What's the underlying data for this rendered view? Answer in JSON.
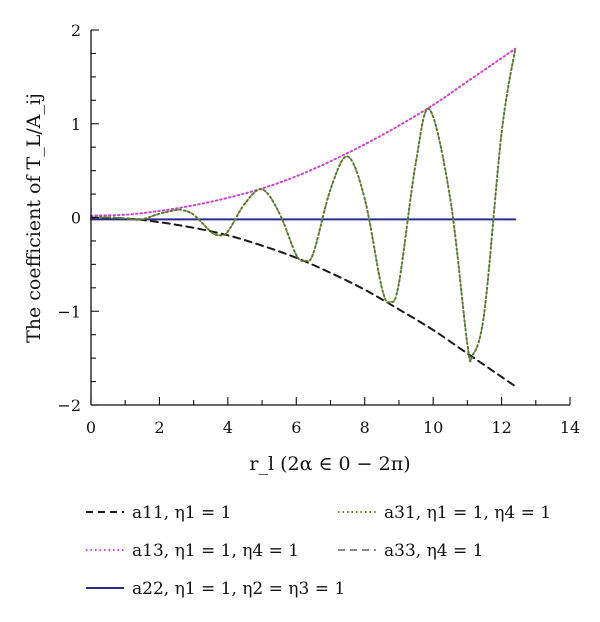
{
  "chart_data": {
    "type": "line",
    "title": "",
    "xlabel": "r_l (2α ∈ 0 − 2π)",
    "ylabel": "The coefficient of T_L/A_ij",
    "xlim": [
      0,
      14
    ],
    "ylim": [
      -2,
      2
    ],
    "x_ticks": [
      0,
      2,
      4,
      6,
      8,
      10,
      12,
      14
    ],
    "y_ticks": [
      -2,
      -1,
      0,
      1,
      2
    ],
    "x_tick_labels": [
      "0",
      "2",
      "4",
      "6",
      "8",
      "10",
      "12",
      "14"
    ],
    "y_tick_labels": [
      "−2",
      "−1",
      "0",
      "1",
      "2"
    ],
    "grid": false,
    "legend_position": "below",
    "series": [
      {
        "name": "a11, η1 = 1",
        "color": "#1a1a1a",
        "style": "dashed",
        "x": [
          0,
          1,
          2,
          3,
          4,
          5,
          6,
          7,
          8,
          9,
          10,
          11,
          12,
          12.4
        ],
        "y": [
          0,
          -0.01,
          -0.05,
          -0.11,
          -0.19,
          -0.3,
          -0.43,
          -0.59,
          -0.77,
          -0.98,
          -1.2,
          -1.45,
          -1.7,
          -1.8
        ]
      },
      {
        "name": "a13, η1 = 1, η4 = 1",
        "color": "#cc44cc",
        "style": "dotted",
        "x": [
          0,
          1,
          2,
          3,
          4,
          5,
          6,
          7,
          8,
          9,
          10,
          11,
          12,
          12.4
        ],
        "y": [
          0.02,
          0.03,
          0.07,
          0.13,
          0.21,
          0.31,
          0.44,
          0.6,
          0.78,
          0.98,
          1.2,
          1.45,
          1.7,
          1.8
        ]
      },
      {
        "name": "a22, η1 = 1, η2 = η3 = 1",
        "color": "#2b2b8f",
        "style": "solid",
        "x": [
          0,
          12.4
        ],
        "y": [
          -0.02,
          -0.02
        ]
      },
      {
        "name": "a31, η1 = 1, η4 = 1",
        "color": "#5a7a2a",
        "style": "dotted",
        "x": [
          0,
          0.5,
          1,
          1.25,
          1.5,
          2,
          2.5,
          2.65,
          3,
          3.5,
          3.75,
          4,
          4.5,
          5,
          5.5,
          6,
          6.25,
          6.5,
          7,
          7.5,
          8,
          8.5,
          8.75,
          9,
          9.5,
          9.9,
          10.5,
          11,
          11.15,
          11.5,
          12,
          12.4
        ],
        "y": [
          0,
          0.002,
          -0.01,
          -0.02,
          -0.02,
          0.04,
          0.08,
          0.08,
          0.03,
          -0.15,
          -0.19,
          -0.15,
          0.15,
          0.3,
          0.05,
          -0.4,
          -0.46,
          -0.38,
          0.3,
          0.65,
          0.2,
          -0.75,
          -0.9,
          -0.7,
          0.6,
          1.15,
          0.2,
          -1.35,
          -1.47,
          -1.0,
          0.9,
          1.8
        ]
      },
      {
        "name": "a33, η4 = 1",
        "color": "#888888",
        "style": "dashed",
        "x": [
          0,
          0.5,
          1,
          1.25,
          1.5,
          2,
          2.5,
          2.65,
          3,
          3.5,
          3.75,
          4,
          4.5,
          5,
          5.5,
          6,
          6.25,
          6.5,
          7,
          7.5,
          8,
          8.5,
          8.75,
          9,
          9.5,
          9.9,
          10.5,
          11,
          11.15,
          11.5,
          12,
          12.4
        ],
        "y": [
          0,
          0.002,
          -0.01,
          -0.02,
          -0.02,
          0.04,
          0.08,
          0.08,
          0.03,
          -0.15,
          -0.19,
          -0.15,
          0.15,
          0.3,
          0.05,
          -0.4,
          -0.46,
          -0.38,
          0.3,
          0.65,
          0.2,
          -0.75,
          -0.9,
          -0.7,
          0.6,
          1.15,
          0.2,
          -1.35,
          -1.47,
          -1.0,
          0.9,
          1.8
        ]
      }
    ]
  }
}
